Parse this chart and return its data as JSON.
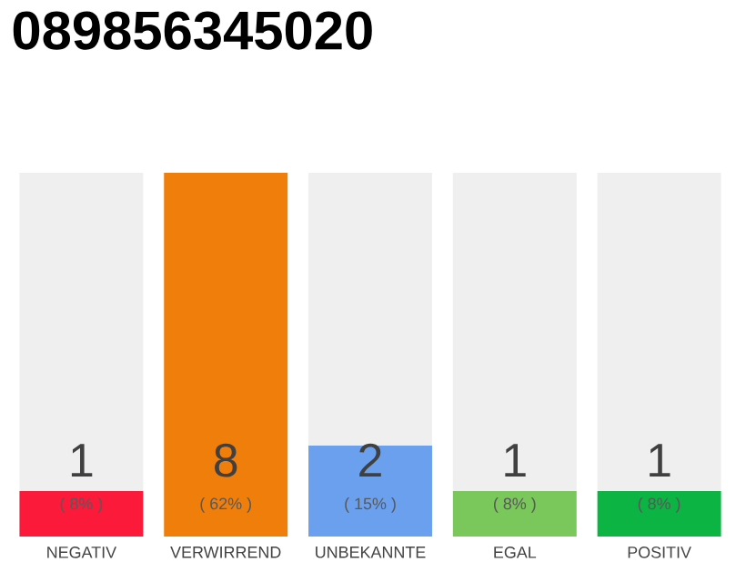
{
  "chart_data": {
    "type": "bar",
    "title": "089856345020",
    "stacked": true,
    "categories": [
      "NEGATIV",
      "VERWIRREND",
      "UNBEKANNTE",
      "EGAL",
      "POSITIV"
    ],
    "ylim": [
      0,
      8
    ],
    "series": [
      {
        "colors": [
          "#fc1a3b",
          "#f07e0b",
          "#6aa0ee",
          "#7ac75b",
          "#0bb443"
        ],
        "values": [
          1,
          8,
          2,
          1,
          1
        ],
        "data_labels": true
      },
      {
        "color": "#efefef",
        "values": [
          7,
          0,
          6,
          7,
          7
        ]
      }
    ],
    "annotations": [
      "( 8% )",
      "( 62% )",
      "( 15% )",
      "( 8% )",
      "( 8% )"
    ]
  }
}
